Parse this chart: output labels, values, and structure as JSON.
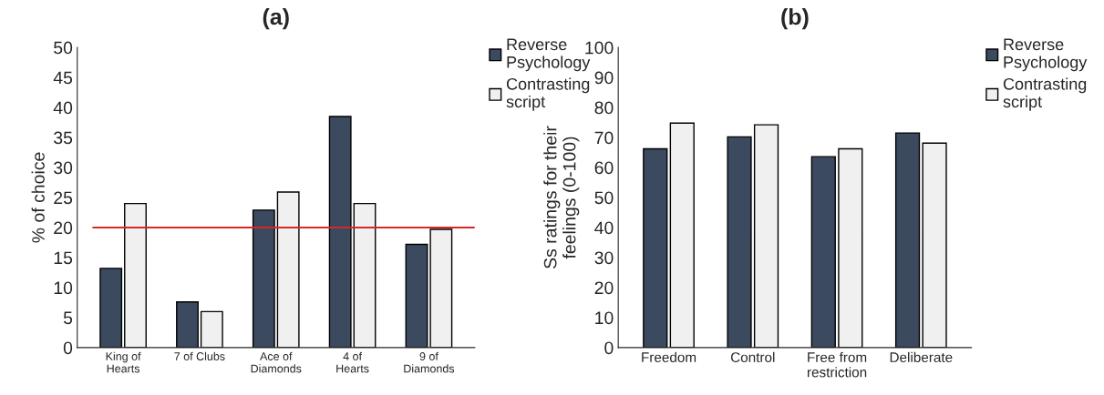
{
  "chart_data": [
    {
      "type": "bar",
      "title": "(a)",
      "ylabel": "% of choice",
      "categories": [
        "King of\nHearts",
        "7 of Clubs",
        "Ace of\nDiamonds",
        "4 of\nHearts",
        "9 of\nDiamonds"
      ],
      "series": [
        {
          "name": "Reverse\nPsychology",
          "color": "#3b4a5e",
          "values": [
            13.2,
            7.6,
            22.9,
            38.5,
            17.2
          ]
        },
        {
          "name": "Contrasting\nscript",
          "color": "#f0f0f0",
          "values": [
            24,
            6,
            25.9,
            24,
            19.7
          ]
        }
      ],
      "ylim": [
        0,
        50
      ],
      "yticks": [
        0,
        5,
        10,
        15,
        20,
        25,
        30,
        35,
        40,
        45,
        50
      ],
      "grid": false,
      "legend": "top right",
      "ref_lines": [
        {
          "axis": "y",
          "value": 20,
          "color": "#d62828"
        }
      ]
    },
    {
      "type": "bar",
      "title": "(b)",
      "ylabel": "Ss ratings for their\nfeelings (0-100)",
      "categories": [
        "Freedom",
        "Control",
        "Free from\nrestriction",
        "Deliberate"
      ],
      "series": [
        {
          "name": "Reverse\nPsychology",
          "color": "#3b4a5e",
          "values": [
            66.2,
            70.2,
            63.6,
            71.5
          ]
        },
        {
          "name": "Contrasting\nscript",
          "color": "#f0f0f0",
          "values": [
            74.8,
            74.2,
            66.2,
            68.1
          ]
        }
      ],
      "ylim": [
        0,
        100
      ],
      "yticks": [
        0,
        10,
        20,
        30,
        40,
        50,
        60,
        70,
        80,
        90,
        100
      ],
      "grid": false,
      "legend": "top right"
    }
  ]
}
